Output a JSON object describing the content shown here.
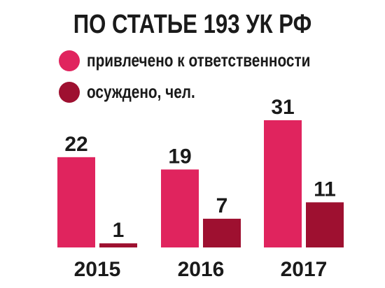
{
  "chart_data": {
    "type": "bar",
    "title": "ПО СТАТЬЕ 193 УК РФ",
    "xlabel": "",
    "ylabel": "",
    "categories": [
      "2015",
      "2016",
      "2017"
    ],
    "series": [
      {
        "name": "привлечено к ответственности",
        "values": [
          22,
          19,
          31
        ],
        "color": "#e0245e"
      },
      {
        "name": "осуждено, чел.",
        "values": [
          1,
          7,
          11
        ],
        "color": "#9e1030"
      }
    ],
    "ylim": [
      0,
      31
    ],
    "grid": false,
    "legend_position": "top-center"
  }
}
